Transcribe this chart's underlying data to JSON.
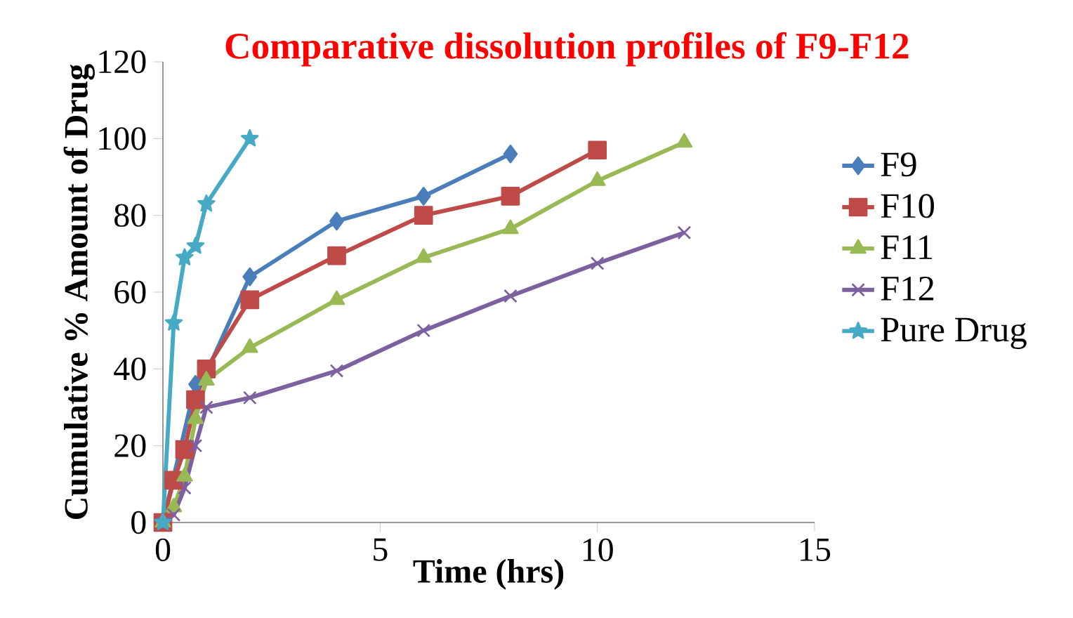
{
  "chart_data": {
    "type": "line",
    "title": "Comparative dissolution profiles of F9-F12",
    "xlabel": "Time (hrs)",
    "ylabel": "Cumulative % Amount of Drug",
    "xlim": [
      0,
      15
    ],
    "xticks": [
      0,
      5,
      10,
      15
    ],
    "ylim": [
      0,
      120
    ],
    "yticks": [
      0,
      20,
      40,
      60,
      80,
      100,
      120
    ],
    "grid": false,
    "legend": "right",
    "line_style": "solid",
    "series": [
      {
        "name": "F9",
        "color": "#4a7ebb",
        "marker": "diamond",
        "x": [
          0,
          0.25,
          0.5,
          0.75,
          1,
          2,
          4,
          6,
          8
        ],
        "values": [
          0,
          null,
          null,
          36,
          39,
          64,
          78.5,
          85,
          96
        ]
      },
      {
        "name": "F10",
        "color": "#be4b48",
        "marker": "square",
        "x": [
          0,
          0.25,
          0.5,
          0.75,
          1,
          2,
          4,
          6,
          8,
          10
        ],
        "values": [
          0,
          11,
          19,
          32,
          40,
          58,
          69.5,
          80,
          85,
          97
        ]
      },
      {
        "name": "F11",
        "color": "#98b954",
        "marker": "triangle",
        "x": [
          0,
          0.25,
          0.5,
          0.75,
          1,
          2,
          4,
          6,
          8,
          10,
          12
        ],
        "values": [
          0,
          4,
          12,
          27,
          37,
          45.5,
          58,
          69,
          76.5,
          89,
          99
        ]
      },
      {
        "name": "F12",
        "color": "#7d60a0",
        "marker": "cross",
        "x": [
          0,
          0.25,
          0.5,
          0.75,
          1,
          2,
          4,
          6,
          8,
          10,
          12
        ],
        "values": [
          0,
          2,
          9,
          20,
          30,
          32.5,
          39.5,
          50,
          59,
          67.5,
          75.5
        ]
      },
      {
        "name": "Pure Drug",
        "color": "#46aac5",
        "marker": "star",
        "x": [
          0,
          0.25,
          0.5,
          0.75,
          1,
          2
        ],
        "values": [
          0,
          52,
          69,
          72,
          83,
          100
        ]
      }
    ]
  }
}
